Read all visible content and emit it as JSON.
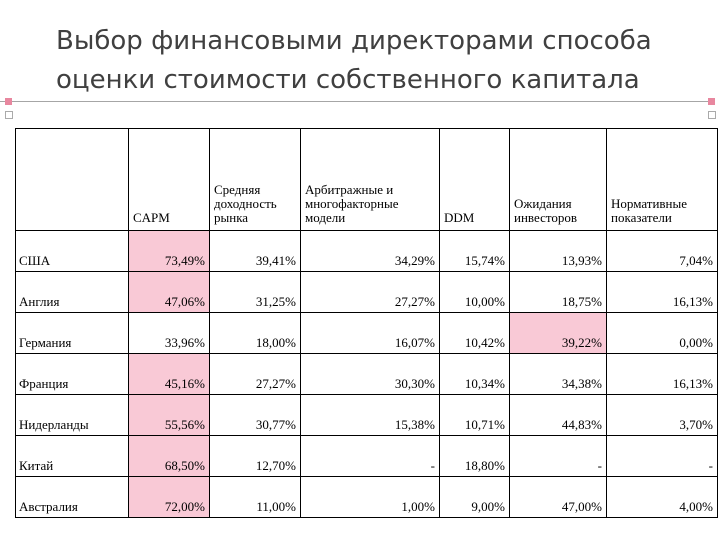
{
  "slide": {
    "title": "Выбор финансовыми директорами способа оценки стоимости собственного капитала",
    "accent_color": "#e8879f",
    "highlight_color": "#f9c9d6"
  },
  "table": {
    "headers": [
      "",
      "CAPM",
      "Средняя доходность рынка",
      "Арбитражные и многофакторные модели",
      "DDM",
      "Ожидания инвесторов",
      "Нормативные показатели"
    ],
    "rows": [
      {
        "country": "США",
        "values": [
          "73,49%",
          "39,41%",
          "34,29%",
          "15,74%",
          "13,93%",
          "7,04%"
        ]
      },
      {
        "country": "Англия",
        "values": [
          "47,06%",
          "31,25%",
          "27,27%",
          "10,00%",
          "18,75%",
          "16,13%"
        ]
      },
      {
        "country": "Германия",
        "values": [
          "33,96%",
          "18,00%",
          "16,07%",
          "10,42%",
          "39,22%",
          "0,00%"
        ]
      },
      {
        "country": "Франция",
        "values": [
          "45,16%",
          "27,27%",
          "30,30%",
          "10,34%",
          "34,38%",
          "16,13%"
        ]
      },
      {
        "country": "Нидерланды",
        "values": [
          "55,56%",
          "30,77%",
          "15,38%",
          "10,71%",
          "44,83%",
          "3,70%"
        ]
      },
      {
        "country": "Китай",
        "values": [
          "68,50%",
          "12,70%",
          "-",
          "18,80%",
          "-",
          "-"
        ]
      },
      {
        "country": "Австралия",
        "values": [
          "72,00%",
          "11,00%",
          "1,00%",
          "9,00%",
          "47,00%",
          "4,00%"
        ]
      }
    ]
  }
}
